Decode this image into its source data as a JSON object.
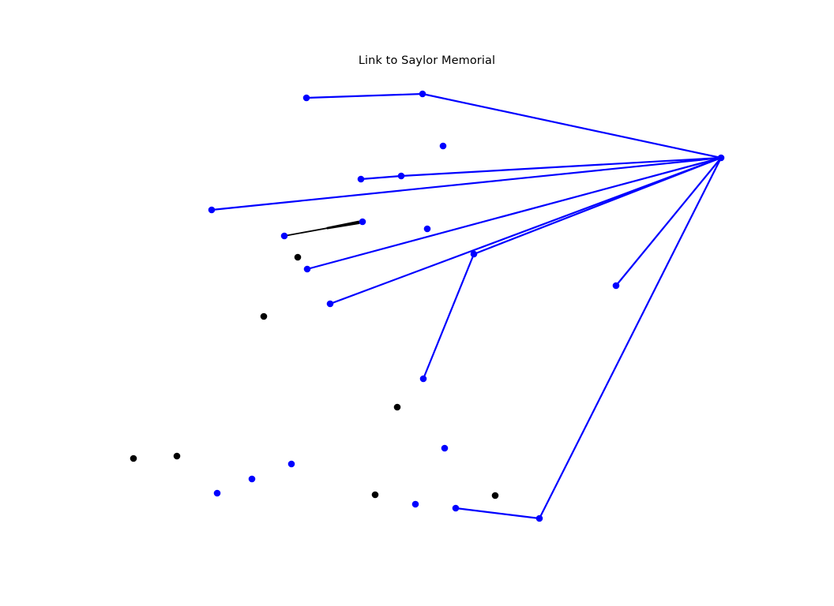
{
  "title": "Link to Saylor Memorial",
  "colors": {
    "link": "#0000ff",
    "node_linked": "#0000ff",
    "node_unlinked": "#000000",
    "edge_other": "#000000",
    "background": "#ffffff"
  },
  "nodes": [
    {
      "id": "n1",
      "group": "linked"
    },
    {
      "id": "n2",
      "group": "linked"
    },
    {
      "id": "hub",
      "group": "linked"
    },
    {
      "id": "n4",
      "group": "linked"
    },
    {
      "id": "n5",
      "group": "linked"
    },
    {
      "id": "n6",
      "group": "linked"
    },
    {
      "id": "n7",
      "group": "linked"
    },
    {
      "id": "n8",
      "group": "linked"
    },
    {
      "id": "n9",
      "group": "linked"
    },
    {
      "id": "n10",
      "group": "unlinked"
    },
    {
      "id": "n11",
      "group": "linked"
    },
    {
      "id": "n12",
      "group": "linked"
    },
    {
      "id": "n13",
      "group": "linked"
    },
    {
      "id": "n14",
      "group": "linked"
    },
    {
      "id": "n15",
      "group": "unlinked"
    },
    {
      "id": "n16",
      "group": "linked"
    },
    {
      "id": "n17",
      "group": "unlinked"
    },
    {
      "id": "n18",
      "group": "linked"
    },
    {
      "id": "n19",
      "group": "unlinked"
    },
    {
      "id": "n20",
      "group": "unlinked"
    },
    {
      "id": "n21",
      "group": "linked"
    },
    {
      "id": "n22",
      "group": "linked"
    },
    {
      "id": "n23",
      "group": "linked"
    },
    {
      "id": "n24",
      "group": "unlinked"
    },
    {
      "id": "n25",
      "group": "linked"
    },
    {
      "id": "n26",
      "group": "linked"
    },
    {
      "id": "n27",
      "group": "unlinked"
    },
    {
      "id": "n28",
      "group": "linked"
    },
    {
      "id": "n29",
      "group": "linked"
    }
  ],
  "edges": [
    {
      "source": "n1",
      "target": "n2",
      "kind": "link"
    },
    {
      "source": "n2",
      "target": "hub",
      "kind": "link"
    },
    {
      "source": "n5",
      "target": "n6",
      "kind": "link"
    },
    {
      "source": "n6",
      "target": "hub",
      "kind": "link"
    },
    {
      "source": "n7",
      "target": "hub",
      "kind": "link"
    },
    {
      "source": "n11",
      "target": "hub",
      "kind": "link"
    },
    {
      "source": "n13",
      "target": "hub",
      "kind": "link"
    },
    {
      "source": "n12",
      "target": "hub",
      "kind": "link"
    },
    {
      "source": "n16",
      "target": "n12",
      "kind": "link"
    },
    {
      "source": "n14",
      "target": "hub",
      "kind": "link"
    },
    {
      "source": "n29",
      "target": "hub",
      "kind": "link"
    },
    {
      "source": "n28",
      "target": "n29",
      "kind": "link"
    },
    {
      "source": "n8",
      "target": "n9",
      "kind": "other",
      "arrow": true
    }
  ]
}
